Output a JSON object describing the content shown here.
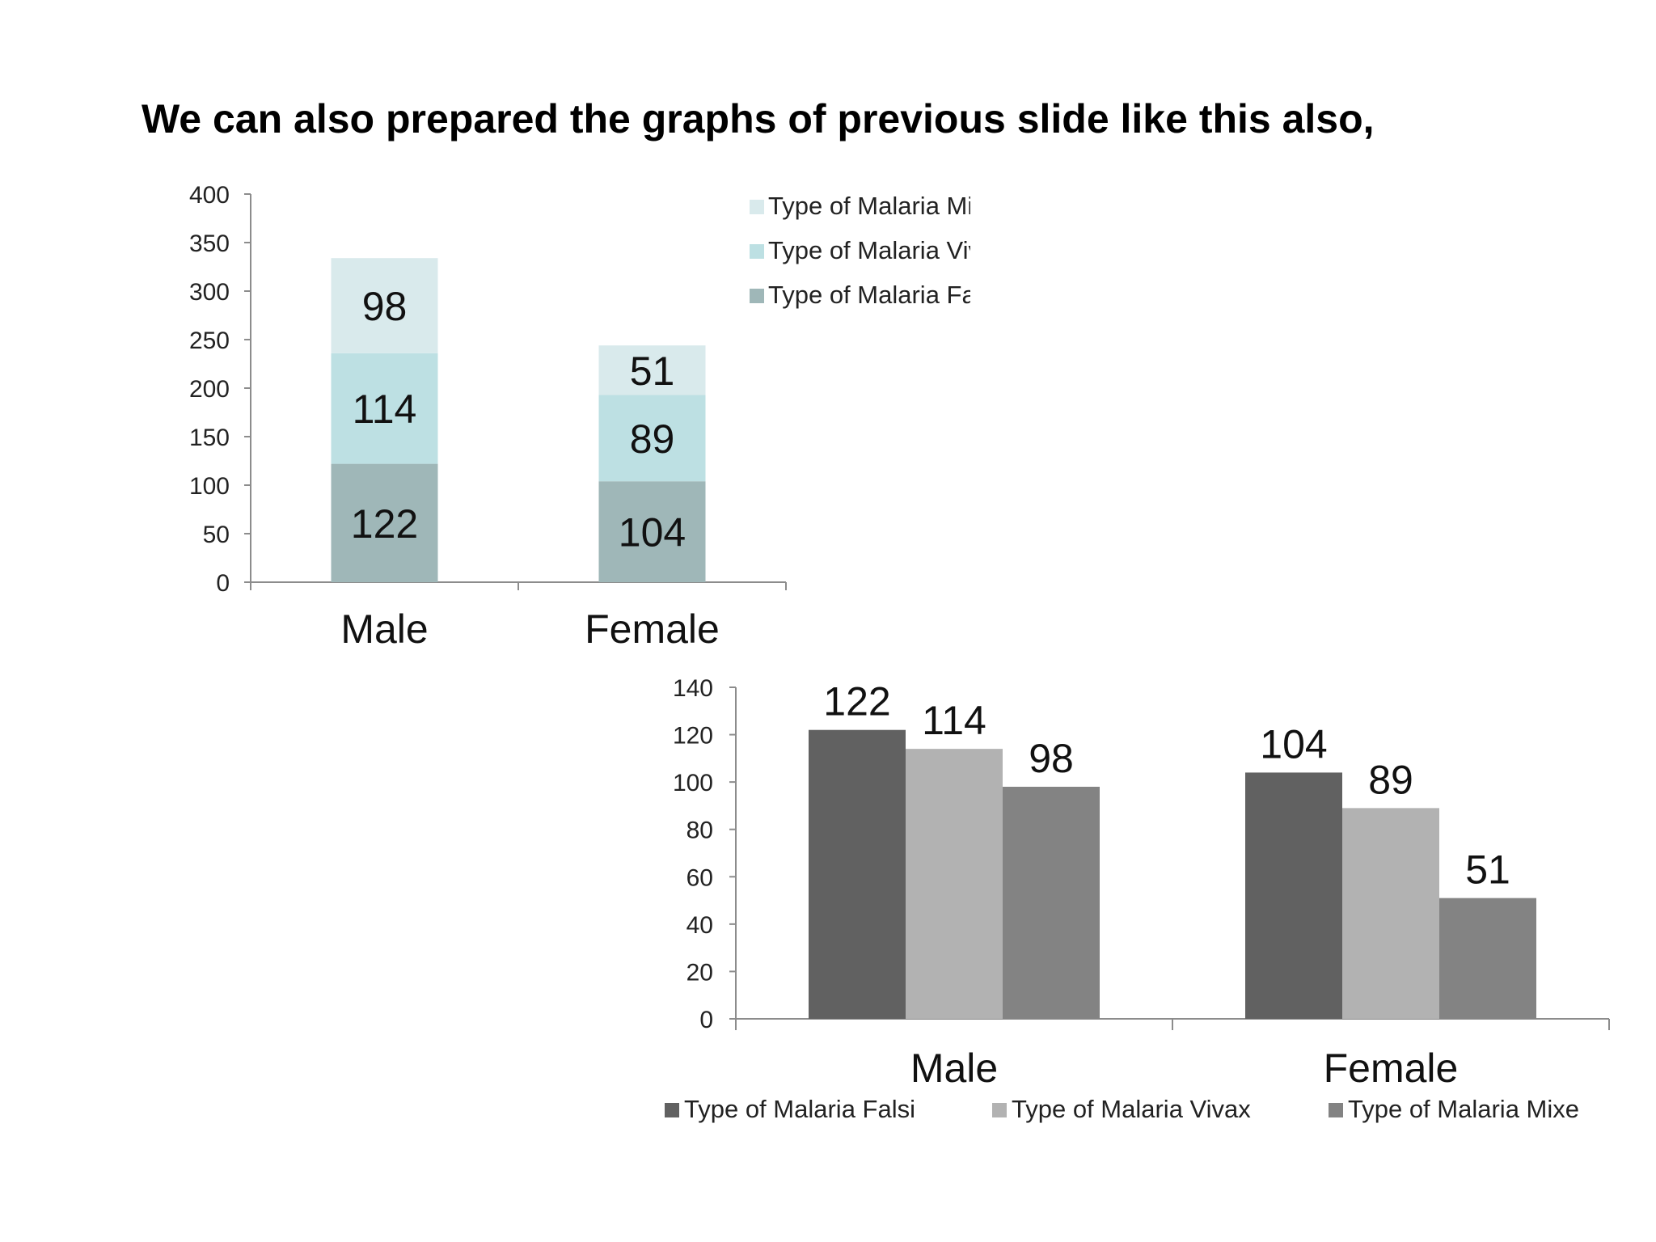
{
  "slide": {
    "title": "We can also prepared the graphs of previous slide like this also,"
  },
  "chart_data": [
    {
      "type": "bar",
      "stacked": true,
      "categories": [
        "Male",
        "Female"
      ],
      "series": [
        {
          "name": "Type of Malaria  Falsi",
          "values": [
            122,
            104
          ],
          "color": "#9fb7b8"
        },
        {
          "name": "Type of Malaria  Vivax",
          "values": [
            114,
            89
          ],
          "color": "#bde0e3"
        },
        {
          "name": "Type of Malaria  Mixe",
          "values": [
            98,
            51
          ],
          "color": "#d9eaec"
        }
      ],
      "legend_order": [
        "Type of Malaria  Mixe",
        "Type of Malaria  Vivax",
        "Type of Malaria  Falsi"
      ],
      "ylim": [
        0,
        400
      ],
      "yticks": [
        0,
        50,
        100,
        150,
        200,
        250,
        300,
        350,
        400
      ],
      "data_labels": true,
      "grid": false,
      "legend_position": "right",
      "title": "",
      "xlabel": "",
      "ylabel": ""
    },
    {
      "type": "bar",
      "stacked": false,
      "categories": [
        "Male",
        "Female"
      ],
      "series": [
        {
          "name": "Type of Malaria  Falsi",
          "values": [
            122,
            104
          ],
          "color": "#616161"
        },
        {
          "name": "Type of Malaria  Vivax",
          "values": [
            114,
            89
          ],
          "color": "#b2b2b2"
        },
        {
          "name": "Type of Malaria  Mixe",
          "values": [
            98,
            51
          ],
          "color": "#838383"
        }
      ],
      "ylim": [
        0,
        140
      ],
      "yticks": [
        0,
        20,
        40,
        60,
        80,
        100,
        120,
        140
      ],
      "data_labels": true,
      "grid": false,
      "legend_position": "bottom",
      "title": "",
      "xlabel": "",
      "ylabel": ""
    }
  ]
}
